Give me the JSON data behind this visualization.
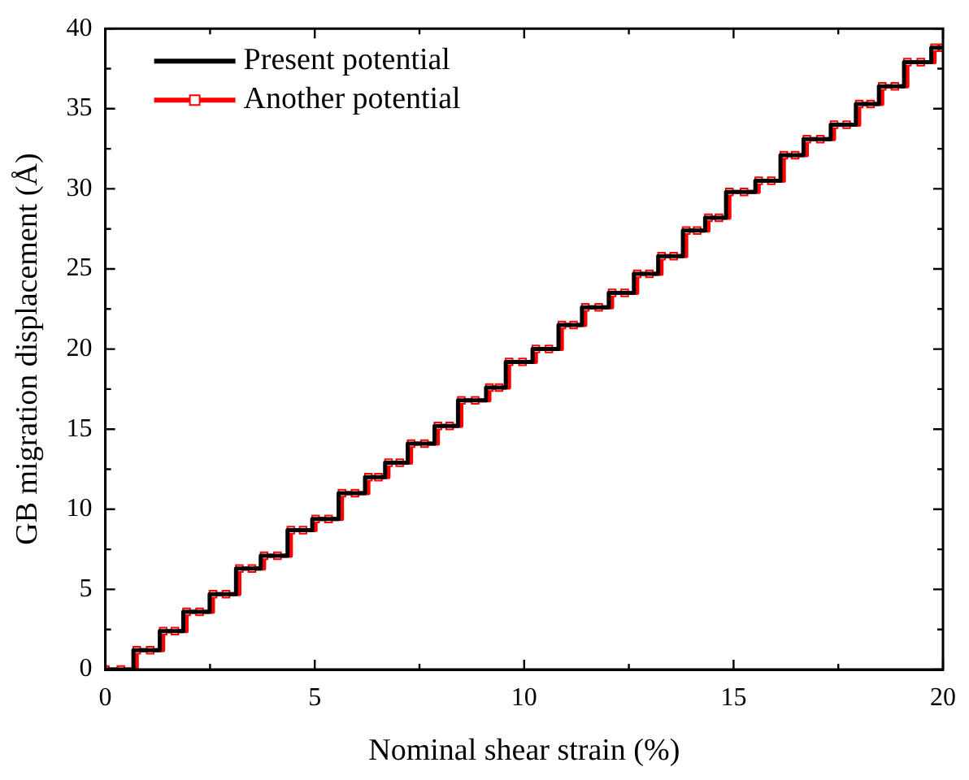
{
  "chart_data": {
    "type": "step",
    "xlabel": "Nominal shear strain (%)",
    "ylabel": "GB migration displacement (Å)",
    "xlim": [
      0,
      20
    ],
    "xticks": [
      0,
      5,
      10,
      15,
      20
    ],
    "ylim": [
      0,
      40
    ],
    "yticks": [
      0,
      5,
      10,
      15,
      20,
      25,
      30,
      35,
      40
    ],
    "grid": false,
    "legend": "top left",
    "line_style": "solid",
    "series": [
      {
        "name": "Present potential",
        "color": "#000000",
        "marker": "none",
        "x": [
          0,
          0.67,
          1.3,
          1.86,
          2.49,
          3.12,
          3.71,
          4.35,
          4.94,
          5.57,
          6.2,
          6.68,
          7.22,
          7.86,
          8.42,
          9.09,
          9.56,
          10.2,
          10.82,
          11.38,
          12.02,
          12.62,
          13.2,
          13.79,
          14.32,
          14.82,
          15.52,
          16.12,
          16.67,
          17.32,
          17.92,
          18.47,
          19.07,
          19.72,
          20
        ],
        "values": [
          0,
          1.2,
          2.4,
          3.6,
          4.7,
          6.3,
          7.1,
          8.7,
          9.4,
          11.0,
          12.0,
          12.9,
          14.1,
          15.2,
          16.8,
          17.6,
          19.2,
          20.0,
          21.5,
          22.6,
          23.5,
          24.7,
          25.8,
          27.4,
          28.2,
          29.8,
          30.5,
          32.1,
          33.1,
          34.0,
          35.3,
          36.4,
          37.9,
          38.8,
          38.8
        ]
      },
      {
        "name": "Another potential",
        "color": "#ff0000",
        "marker": "square",
        "x": [
          0,
          0.37,
          0.75,
          1.07,
          1.38,
          1.66,
          1.94,
          2.25,
          2.57,
          2.88,
          3.2,
          3.5,
          3.79,
          4.11,
          4.43,
          4.72,
          5.02,
          5.33,
          5.65,
          5.96,
          6.28,
          6.52,
          6.76,
          7.03,
          7.3,
          7.62,
          7.94,
          8.22,
          8.5,
          8.83,
          9.17,
          9.4,
          9.64,
          9.96,
          10.28,
          10.59,
          10.9,
          11.18,
          11.46,
          11.78,
          12.1,
          12.4,
          12.7,
          12.99,
          13.28,
          13.57,
          13.87,
          14.13,
          14.4,
          14.65,
          14.9,
          15.25,
          15.6,
          15.9,
          16.2,
          16.47,
          16.75,
          17.07,
          17.4,
          17.7,
          18.0,
          18.27,
          18.55,
          18.85,
          19.15,
          19.47,
          19.8,
          20
        ],
        "values": [
          0,
          0,
          1.2,
          1.2,
          2.4,
          2.4,
          3.6,
          3.6,
          4.7,
          4.7,
          6.3,
          6.3,
          7.1,
          7.1,
          8.7,
          8.7,
          9.4,
          9.4,
          11.0,
          11.0,
          12.0,
          12.0,
          12.9,
          12.9,
          14.1,
          14.1,
          15.2,
          15.2,
          16.8,
          16.8,
          17.6,
          17.6,
          19.2,
          19.2,
          20.0,
          20.0,
          21.5,
          21.5,
          22.6,
          22.6,
          23.5,
          23.5,
          24.7,
          24.7,
          25.8,
          25.8,
          27.4,
          27.4,
          28.2,
          28.2,
          29.8,
          29.8,
          30.5,
          30.5,
          32.1,
          32.1,
          33.1,
          33.1,
          34.0,
          34.0,
          35.3,
          35.3,
          36.4,
          36.4,
          37.9,
          37.9,
          38.8,
          38.8
        ]
      }
    ]
  }
}
